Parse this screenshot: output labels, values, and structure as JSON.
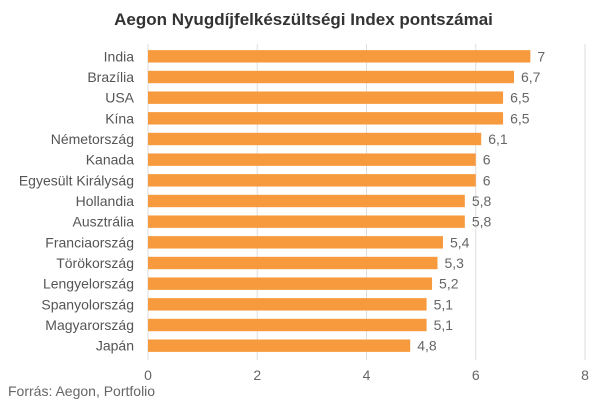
{
  "chart_data": {
    "type": "bar",
    "orientation": "horizontal",
    "title": "Aegon Nyugdíjfelkészültségi Index pontszámai",
    "source": "Forrás: Aegon, Portfolio",
    "categories": [
      "India",
      "Brazília",
      "USA",
      "Kína",
      "Németország",
      "Kanada",
      "Egyesült Királyság",
      "Hollandia",
      "Ausztrália",
      "Franciaország",
      "Törökország",
      "Lengyelország",
      "Spanyolország",
      "Magyarország",
      "Japán"
    ],
    "values": [
      7,
      6.7,
      6.5,
      6.5,
      6.1,
      6,
      6,
      5.8,
      5.8,
      5.4,
      5.3,
      5.2,
      5.1,
      5.1,
      4.8
    ],
    "value_labels": [
      "7",
      "6,7",
      "6,5",
      "6,5",
      "6,1",
      "6",
      "6",
      "5,8",
      "5,8",
      "5,4",
      "5,3",
      "5,2",
      "5,1",
      "5,1",
      "4,8"
    ],
    "xlim": [
      0,
      8
    ],
    "x_ticks": [
      0,
      2,
      4,
      6,
      8
    ],
    "x_tick_labels": [
      "0",
      "2",
      "4",
      "6",
      "8"
    ],
    "grid": true,
    "bar_color": "#F79A3E",
    "grid_color": "#DDDDDD"
  }
}
